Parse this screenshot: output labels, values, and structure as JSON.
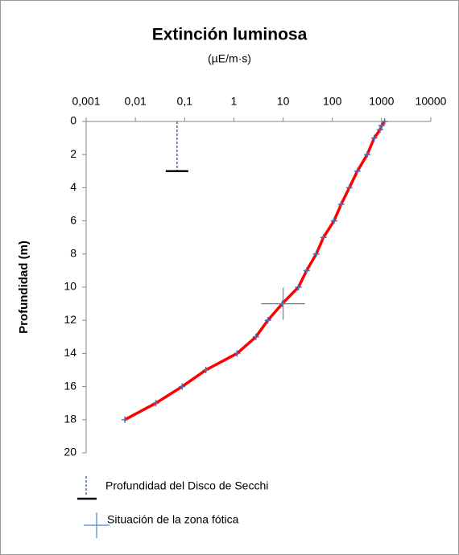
{
  "chart_data": {
    "type": "line",
    "title": "Extinción luminosa",
    "subtitle": "(µE/m·s)",
    "y_label": "Profundidad (m)",
    "xlog": true,
    "x_axis_position": "top",
    "y_reversed": true,
    "xlim": [
      0.001,
      10000
    ],
    "xticks": [
      {
        "value": 0.001,
        "label": "0,001"
      },
      {
        "value": 0.01,
        "label": "0,01"
      },
      {
        "value": 0.1,
        "label": "0,1"
      },
      1,
      10,
      100,
      1000,
      10000
    ],
    "ylim": [
      0,
      20
    ],
    "yticks": [
      0,
      2,
      4,
      6,
      8,
      10,
      12,
      14,
      16,
      18,
      20
    ],
    "grid": false,
    "legend": "bottom",
    "series": [
      {
        "color": "#ff0000",
        "marker_color": "#4a6fb0",
        "x": [
          1150,
          1000,
          930,
          710,
          510,
          322,
          221,
          151,
          108,
          66,
          47,
          30,
          20.5,
          9.6,
          4.9,
          2.8,
          1.16,
          0.27,
          0.089,
          0.026,
          0.0061
        ],
        "y": [
          0,
          0.25,
          0.5,
          1,
          2,
          3,
          4,
          5,
          6,
          7,
          8,
          9,
          10,
          11,
          12,
          13,
          14,
          15,
          16,
          17,
          18
        ]
      },
      {
        "name": "Profundidad del Disco de Secchi",
        "color": "#4a6fb0",
        "marker_color": "#000000",
        "x": [
          0.07,
          0.07
        ],
        "y": [
          0,
          3
        ]
      },
      {
        "name": "Situación de la zona fótica",
        "color": "#4a86c8",
        "x": [
          10
        ],
        "y": [
          11
        ]
      }
    ]
  }
}
